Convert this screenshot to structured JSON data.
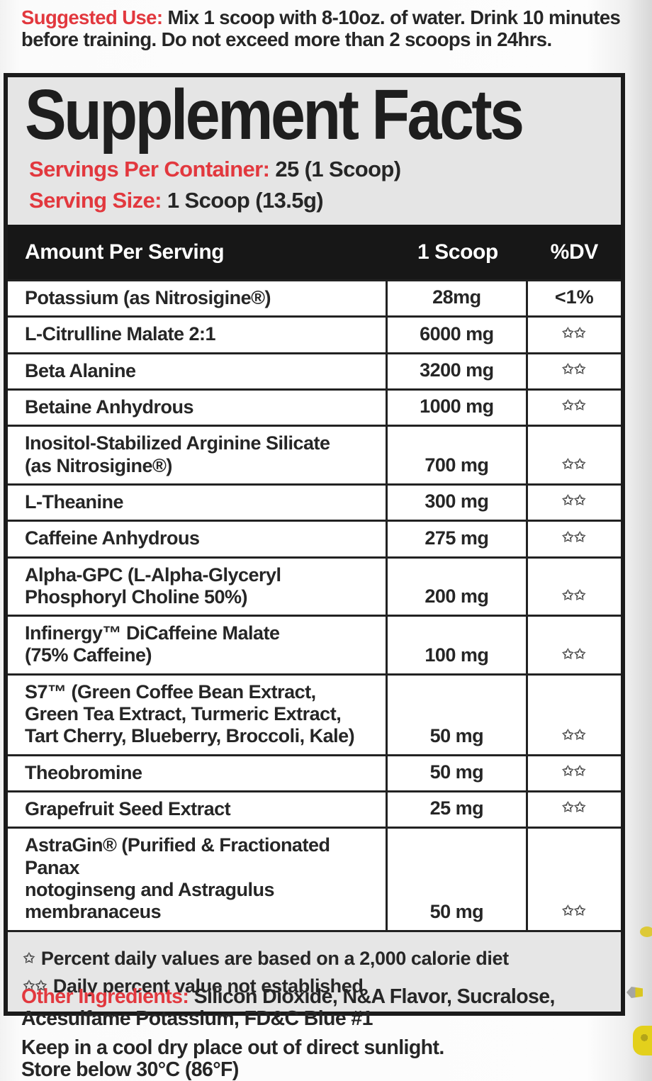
{
  "colors": {
    "accent_red": "#e2383e",
    "text_dark": "#262626",
    "panel_header_gray": "#e5e5e5",
    "table_band_black": "#171717",
    "fragment_yellow": "#e3d01c"
  },
  "suggested_use": {
    "label": "Suggested Use:",
    "text": "Mix 1 scoop with 8-10oz. of water. Drink 10 minutes before training. Do not exceed more than 2 scoops in 24hrs."
  },
  "panel": {
    "title": "Supplement Facts",
    "servings_per_container": {
      "label": "Servings Per Container:",
      "value": "25 (1 Scoop)"
    },
    "serving_size": {
      "label": "Serving Size:",
      "value": "1 Scoop (13.5g)"
    },
    "table": {
      "headers": [
        "Amount Per Serving",
        "1 Scoop",
        "%DV"
      ],
      "rows": [
        {
          "name": "Potassium (as Nitrosigine®)",
          "amount": "28mg",
          "dv": "<1%"
        },
        {
          "name": "L-Citrulline Malate 2:1",
          "amount": "6000 mg",
          "dv": "✩✩"
        },
        {
          "name": "Beta Alanine",
          "amount": "3200 mg",
          "dv": "✩✩"
        },
        {
          "name": "Betaine Anhydrous",
          "amount": "1000 mg",
          "dv": "✩✩"
        },
        {
          "name": "Inositol-Stabilized Arginine Silicate\n(as Nitrosigine®)",
          "amount": "700 mg",
          "dv": "✩✩"
        },
        {
          "name": "L-Theanine",
          "amount": "300 mg",
          "dv": "✩✩"
        },
        {
          "name": "Caffeine Anhydrous",
          "amount": "275 mg",
          "dv": "✩✩"
        },
        {
          "name": "Alpha-GPC (L-Alpha-Glyceryl\nPhosphoryl Choline 50%)",
          "amount": "200 mg",
          "dv": "✩✩"
        },
        {
          "name": "Infinergy™ DiCaffeine Malate\n(75% Caffeine)",
          "amount": "100 mg",
          "dv": "✩✩"
        },
        {
          "name": "S7™ (Green Coffee Bean Extract,\nGreen Tea Extract, Turmeric Extract,\nTart Cherry, Blueberry, Broccoli, Kale)",
          "amount": "50 mg",
          "dv": "✩✩"
        },
        {
          "name": "Theobromine",
          "amount": "50 mg",
          "dv": "✩✩"
        },
        {
          "name": "Grapefruit Seed Extract",
          "amount": "25 mg",
          "dv": "✩✩"
        },
        {
          "name": "AstraGin® (Purified & Fractionated Panax\nnotoginseng and Astragulus membranaceus",
          "amount": "50 mg",
          "dv": "✩✩"
        }
      ]
    },
    "footnotes": [
      {
        "marker": "✩",
        "text": "Percent daily values are based on a 2,000 calorie diet"
      },
      {
        "marker": "✩✩",
        "text": "Daily percent value not established"
      }
    ]
  },
  "other_ingredients": {
    "label": "Other Ingredients:",
    "text": "Silicon Dioxide, N&A Flavor, Sucralose, Acesulfame Potassium, FD&C Blue #1"
  },
  "storage": "Keep in a cool dry place out of direct sunlight.\nStore below 30°C (86°F)"
}
